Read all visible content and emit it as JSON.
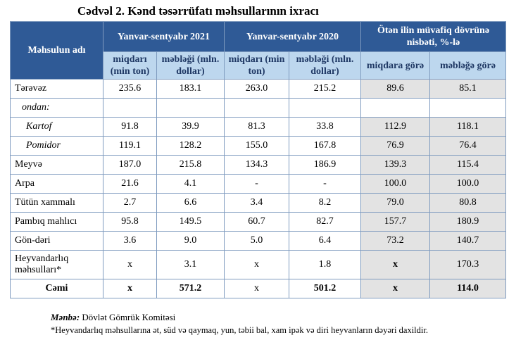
{
  "title": "Cədvəl 2. Kənd təsərrüfatı məhsullarının ixracı",
  "header": {
    "col0": "Məhsulun adı",
    "period2021": "Yanvar-sentyabr 2021",
    "period2020": "Yanvar-sentyabr 2020",
    "ratio": "Ötən ilin müvafiq dövrünə nisbəti, %-lə",
    "qty": "miqdarı (min ton)",
    "amount": "məbləği (mln. dollar)",
    "qty_ratio": "miqdara görə",
    "amount_ratio": "məbləğə görə"
  },
  "rows": [
    {
      "name": "Tərəvəz",
      "q21": "235.6",
      "a21": "183.1",
      "q20": "263.0",
      "a20": "215.2",
      "rq": "89.6",
      "ra": "85.1"
    },
    {
      "name": "ondan:",
      "q21": "",
      "a21": "",
      "q20": "",
      "a20": "",
      "rq": "",
      "ra": ""
    },
    {
      "name": "Kartof",
      "q21": "91.8",
      "a21": "39.9",
      "q20": "81.3",
      "a20": "33.8",
      "rq": "112.9",
      "ra": "118.1"
    },
    {
      "name": "Pomidor",
      "q21": "119.1",
      "a21": "128.2",
      "q20": "155.0",
      "a20": "167.8",
      "rq": "76.9",
      "ra": "76.4"
    },
    {
      "name": "Meyvə",
      "q21": "187.0",
      "a21": "215.8",
      "q20": "134.3",
      "a20": "186.9",
      "rq": "139.3",
      "ra": "115.4"
    },
    {
      "name": "Arpa",
      "q21": "21.6",
      "a21": "4.1",
      "q20": "-",
      "a20": "-",
      "rq": "100.0",
      "ra": "100.0"
    },
    {
      "name": "Tütün xammalı",
      "q21": "2.7",
      "a21": "6.6",
      "q20": "3.4",
      "a20": "8.2",
      "rq": "79.0",
      "ra": "80.8"
    },
    {
      "name": "Pambıq mahlıcı",
      "q21": "95.8",
      "a21": "149.5",
      "q20": "60.7",
      "a20": "82.7",
      "rq": "157.7",
      "ra": "180.9"
    },
    {
      "name": "Gön-dəri",
      "q21": "3.6",
      "a21": "9.0",
      "q20": "5.0",
      "a20": "6.4",
      "rq": "73.2",
      "ra": "140.7"
    },
    {
      "name": "Heyvandarlıq məhsulları*",
      "q21": "x",
      "a21": "3.1",
      "q20": "x",
      "a20": "1.8",
      "rq": "x",
      "ra": "170.3"
    },
    {
      "name": "Cəmi",
      "q21": "x",
      "a21": "571.2",
      "q20": "x",
      "a20": "501.2",
      "rq": "x",
      "ra": "114.0"
    }
  ],
  "source_label": "Mənbə:",
  "source_text": "Dövlət Gömrük Komitəsi",
  "footnote": "*Heyvandarlıq məhsullarına ət, süd və qaymaq, yun, təbii bal, xam ipək və diri heyvanların dəyəri daxildir."
}
